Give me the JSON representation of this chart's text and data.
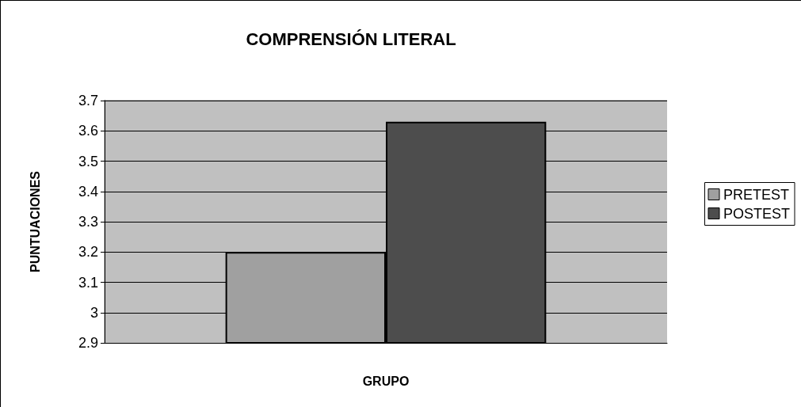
{
  "chart_data": {
    "type": "bar",
    "title": "COMPRENSIÓN LITERAL",
    "xlabel": "GRUPO",
    "ylabel": "PUNTUACIONES",
    "categories": [
      null
    ],
    "series": [
      {
        "name": "PRETEST",
        "color": "#a0a0a0",
        "values": [
          3.2
        ]
      },
      {
        "name": "POSTEST",
        "color": "#4d4d4d",
        "values": [
          3.63
        ]
      }
    ],
    "ylim": [
      2.9,
      3.7
    ],
    "yticks": [
      2.9,
      3,
      3.1,
      3.2,
      3.3,
      3.4,
      3.5,
      3.6,
      3.7
    ],
    "grid": "y",
    "legend": "right"
  }
}
